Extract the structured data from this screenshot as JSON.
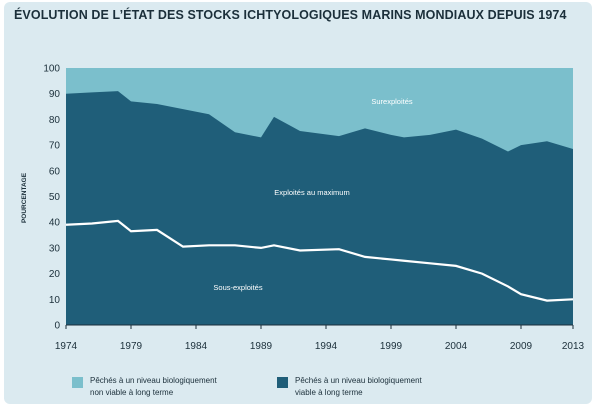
{
  "chart_data": {
    "type": "area",
    "title": "ÉVOLUTION DE L’ÉTAT DES STOCKS ICHTYOLOGIQUES MARINS MONDIAUX DEPUIS 1974",
    "ylabel": "POURCENTAGE",
    "xlabel": "",
    "xlim": [
      1974,
      2013
    ],
    "ylim": [
      0,
      100
    ],
    "x_ticks": [
      "1974",
      "1979",
      "1984",
      "1989",
      "1994",
      "1999",
      "2004",
      "2009",
      "2013"
    ],
    "y_ticks": [
      "0",
      "10",
      "20",
      "30",
      "40",
      "50",
      "60",
      "70",
      "80",
      "90",
      "100"
    ],
    "x": [
      1974,
      1976,
      1978,
      1979,
      1981,
      1983,
      1985,
      1987,
      1989,
      1990,
      1992,
      1995,
      1997,
      1999,
      2000,
      2002,
      2004,
      2006,
      2008,
      2009,
      2011,
      2013
    ],
    "lines": {
      "underexploited_upper": [
        39,
        39.5,
        40.5,
        36.5,
        37,
        30.5,
        31,
        31,
        30,
        31,
        29,
        29.5,
        26.5,
        25.5,
        25,
        24,
        23,
        20,
        15,
        12,
        9.5,
        10
      ],
      "fully_exploited_upper": [
        90,
        90.5,
        91,
        87,
        86,
        84,
        82,
        75,
        73,
        81,
        75.5,
        73.5,
        76.5,
        74,
        73,
        74,
        76,
        72.5,
        67.5,
        70,
        71.5,
        68.5
      ]
    },
    "regions": {
      "overexploited": "Surexploités",
      "fully_exploited": "Exploités au maximum",
      "underexploited": "Sous-exploités"
    },
    "legend": [
      {
        "label_line1": "Pêchés à un niveau biologiquement",
        "label_line2": "non viable à long terme",
        "color": "#7bbfcc"
      },
      {
        "label_line1": "Pêchés à un niveau biologiquement",
        "label_line2": "viable à long terme",
        "color": "#1f5e79"
      }
    ],
    "colors": {
      "unsustainable": "#7bbfcc",
      "sustainable": "#1f5e79",
      "boundary_line": "#ffffff"
    }
  }
}
